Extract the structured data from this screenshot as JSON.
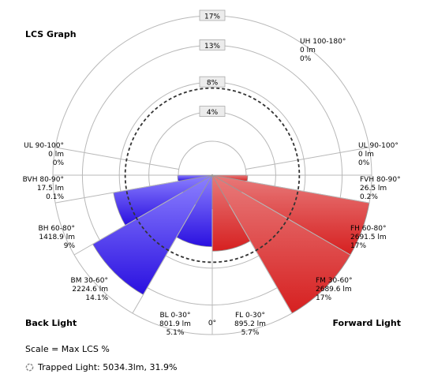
{
  "title": "LCS Graph",
  "back_light_label": "Back Light",
  "forward_light_label": "Forward Light",
  "footer": {
    "scale_text": "Scale = Max LCS %",
    "trapped_text": "Trapped Light: 5034.3lm, 31.9%"
  },
  "colors": {
    "back": "#3b22e8",
    "forward": "#d92e2e",
    "ring": "#b8b8b8",
    "dashed_ring": "#333333"
  },
  "chart_data": {
    "type": "polar-bar",
    "rings_pct": [
      4,
      8,
      13,
      17
    ],
    "ring_labels": [
      "4%",
      "8%",
      "13%",
      "17%"
    ],
    "dashed_ring_pct": 7.2,
    "max_pct": 17,
    "center_label": "0°",
    "zones": [
      {
        "id": "BL",
        "side": "back",
        "from_deg": 0,
        "to_deg": 30,
        "pct": 5.1,
        "lines": [
          "BL 0-30°",
          "801.9 lm",
          "5.1%"
        ]
      },
      {
        "id": "BM",
        "side": "back",
        "from_deg": 30,
        "to_deg": 60,
        "pct": 14.1,
        "lines": [
          "BM 30-60°",
          "2224.6 lm",
          "14.1%"
        ]
      },
      {
        "id": "BH",
        "side": "back",
        "from_deg": 60,
        "to_deg": 80,
        "pct": 9,
        "lines": [
          "BH 60-80°",
          "1418.9 lm",
          "9%"
        ]
      },
      {
        "id": "BVH",
        "side": "back",
        "from_deg": 80,
        "to_deg": 90,
        "pct": 0.1,
        "lines": [
          "BVH 80-90°",
          "17.5 lm",
          "0.1%"
        ]
      },
      {
        "id": "ULB",
        "side": "back",
        "from_deg": 90,
        "to_deg": 100,
        "pct": 0,
        "lines": [
          "UL 90-100°",
          "0 lm",
          "0%"
        ]
      },
      {
        "id": "UH",
        "side": "up",
        "from_deg": 100,
        "to_deg": 180,
        "pct": 0,
        "lines": [
          "UH 100-180°",
          "0 lm",
          "0%"
        ]
      },
      {
        "id": "ULF",
        "side": "forward",
        "from_deg": 90,
        "to_deg": 100,
        "pct": 0,
        "lines": [
          "UL 90-100°",
          "0 lm",
          "0%"
        ]
      },
      {
        "id": "FVH",
        "side": "forward",
        "from_deg": 80,
        "to_deg": 90,
        "pct": 0.2,
        "lines": [
          "FVH 80-90°",
          "26.5 lm",
          "0.2%"
        ]
      },
      {
        "id": "FH",
        "side": "forward",
        "from_deg": 60,
        "to_deg": 80,
        "pct": 17,
        "lines": [
          "FH 60-80°",
          "2691.5 lm",
          "17%"
        ]
      },
      {
        "id": "FM",
        "side": "forward",
        "from_deg": 30,
        "to_deg": 60,
        "pct": 17,
        "lines": [
          "FM 30-60°",
          "2689.6 lm",
          "17%"
        ]
      },
      {
        "id": "FL",
        "side": "forward",
        "from_deg": 0,
        "to_deg": 30,
        "pct": 5.7,
        "lines": [
          "FL 0-30°",
          "895.2 lm",
          "5.7%"
        ]
      }
    ]
  }
}
